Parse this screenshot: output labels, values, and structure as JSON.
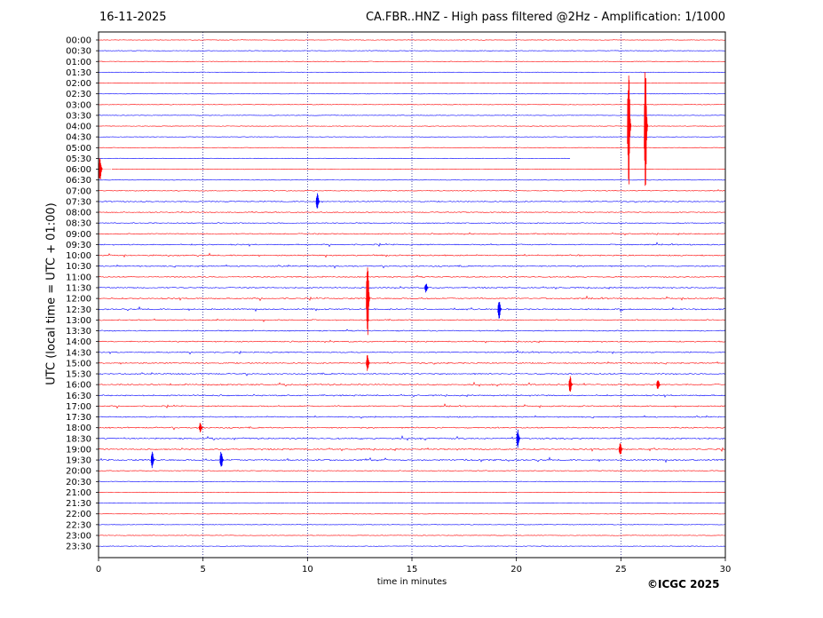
{
  "header": {
    "date": "16-11-2025",
    "title": "CA.FBR..HNZ - High pass filtered @2Hz - Amplification: 1/1000"
  },
  "footer": {
    "copyright": "©ICGC 2025"
  },
  "chart_data": {
    "type": "line",
    "title": "CA.FBR..HNZ - High pass filtered @2Hz - Amplification: 1/1000",
    "xlabel": "time in minutes",
    "ylabel": "UTC (local time = UTC + 01:00)",
    "xlim": [
      0,
      30
    ],
    "xticks": [
      "0",
      "5",
      "10",
      "15",
      "20",
      "25",
      "30"
    ],
    "grid": "vertical dotted at 5-minute intervals",
    "rows": [
      "00:00",
      "00:30",
      "01:00",
      "01:30",
      "02:00",
      "02:30",
      "03:00",
      "03:30",
      "04:00",
      "04:30",
      "05:00",
      "05:30",
      "06:00",
      "06:30",
      "07:00",
      "07:30",
      "08:00",
      "08:30",
      "09:00",
      "09:30",
      "10:00",
      "10:30",
      "11:00",
      "11:30",
      "12:00",
      "12:30",
      "13:00",
      "13:30",
      "14:00",
      "14:30",
      "15:00",
      "15:30",
      "16:00",
      "16:30",
      "17:00",
      "17:30",
      "18:00",
      "18:30",
      "19:00",
      "19:30",
      "20:00",
      "20:30",
      "21:00",
      "21:30",
      "22:00",
      "22:30",
      "23:00",
      "23:30"
    ],
    "trace_colors": [
      "#ff0000",
      "#0000ff"
    ],
    "row_activity": [
      0.05,
      0.05,
      0.05,
      0.08,
      0.05,
      0.05,
      0.05,
      0.05,
      0.05,
      0.05,
      0.05,
      0.04,
      0.05,
      0.05,
      0.2,
      0.35,
      0.3,
      0.3,
      0.4,
      0.45,
      0.5,
      0.45,
      0.4,
      0.45,
      0.5,
      0.55,
      0.4,
      0.4,
      0.45,
      0.4,
      0.45,
      0.5,
      0.55,
      0.5,
      0.45,
      0.45,
      0.5,
      0.6,
      0.55,
      0.65,
      0.2,
      0.05,
      0.05,
      0.05,
      0.05,
      0.05,
      0.05,
      0.05
    ],
    "events": [
      {
        "row": "04:00",
        "minute": 25.4,
        "amplitude": 6
      },
      {
        "row": "04:00",
        "minute": 26.2,
        "amplitude": 6
      },
      {
        "row": "06:00",
        "minute": 0.1,
        "amplitude": 1.2
      },
      {
        "row": "12:00",
        "minute": 12.9,
        "amplitude": 4
      },
      {
        "row": "12:30",
        "minute": 19.2,
        "amplitude": 1
      },
      {
        "row": "07:30",
        "minute": 10.5,
        "amplitude": 0.8
      },
      {
        "row": "18:30",
        "minute": 20.1,
        "amplitude": 0.9
      },
      {
        "row": "19:30",
        "minute": 2.6,
        "amplitude": 0.8
      },
      {
        "row": "19:30",
        "minute": 5.9,
        "amplitude": 0.9
      },
      {
        "row": "15:00",
        "minute": 12.9,
        "amplitude": 0.8
      },
      {
        "row": "16:00",
        "minute": 22.6,
        "amplitude": 0.8
      },
      {
        "row": "16:00",
        "minute": 26.8,
        "amplitude": 0.6
      },
      {
        "row": "19:00",
        "minute": 25.0,
        "amplitude": 0.7
      },
      {
        "row": "18:00",
        "minute": 4.9,
        "amplitude": 0.5
      },
      {
        "row": "11:30",
        "minute": 15.7,
        "amplitude": 0.5
      }
    ],
    "gaps": [
      {
        "row": "05:30",
        "from": 22.6,
        "to": 30
      },
      {
        "row": "06:00",
        "from": 0.2,
        "to": 0.6
      }
    ]
  }
}
